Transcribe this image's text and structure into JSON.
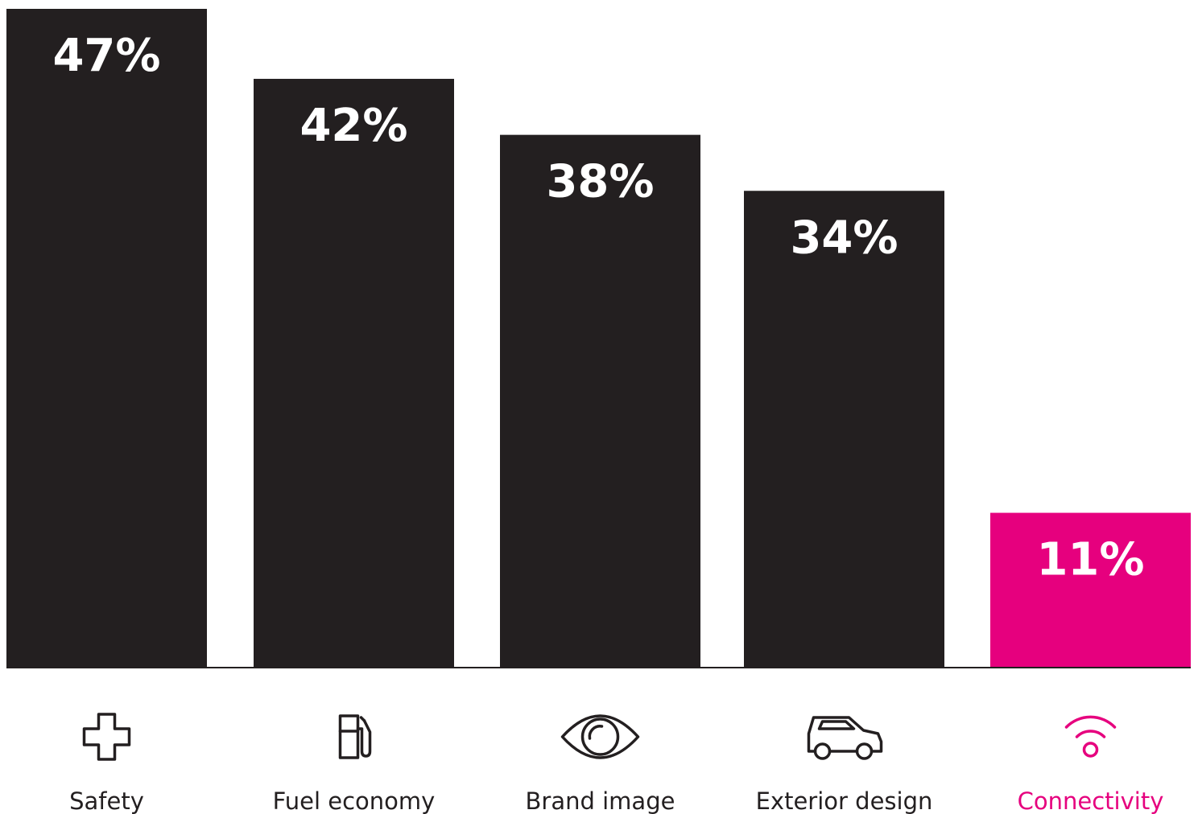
{
  "chart_data": {
    "type": "bar",
    "categories": [
      "Safety",
      "Fuel economy",
      "Brand image",
      "Exterior design",
      "Connectivity"
    ],
    "values": [
      47,
      42,
      38,
      34,
      11
    ],
    "value_labels": [
      "47%",
      "42%",
      "38%",
      "34%",
      "11%"
    ],
    "icons": [
      "plus-icon",
      "fuel-pump-icon",
      "eye-icon",
      "car-icon",
      "wifi-icon"
    ],
    "highlight_index": 4,
    "ylim": [
      0,
      47
    ],
    "grid": false,
    "legend": "none",
    "title": "",
    "xlabel": "",
    "ylabel": ""
  },
  "colors": {
    "bar": "#231f20",
    "highlight": "#e6007e",
    "label_text_on_bar": "#ffffff",
    "category_text": "#231f20",
    "baseline": "#231f20"
  }
}
